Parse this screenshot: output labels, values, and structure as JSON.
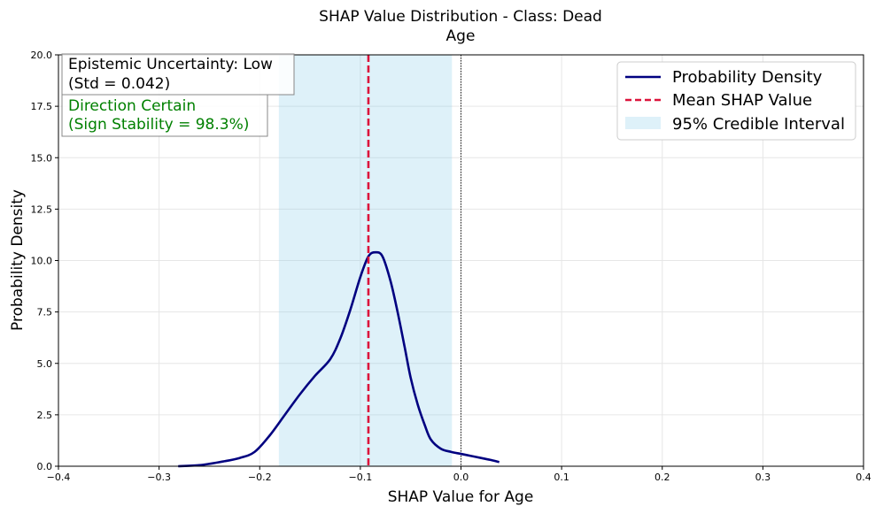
{
  "chart_data": {
    "type": "line",
    "title": "SHAP Value Distribution - Class: Dead",
    "subtitle": "Age",
    "xlabel": "SHAP Value for Age",
    "ylabel": "Probability Density",
    "xlim": [
      -0.4,
      0.4
    ],
    "ylim": [
      0,
      20
    ],
    "x_ticks": [
      -0.4,
      -0.3,
      -0.2,
      -0.1,
      0.0,
      0.1,
      0.2,
      0.3,
      0.4
    ],
    "x_tick_labels": [
      "−0.4",
      "−0.3",
      "−0.2",
      "−0.1",
      "0.0",
      "0.1",
      "0.2",
      "0.3",
      "0.4"
    ],
    "y_ticks": [
      0,
      2.5,
      5,
      7.5,
      10,
      12.5,
      15,
      17.5,
      20
    ],
    "y_tick_labels": [
      "0.0",
      "2.5",
      "5.0",
      "7.5",
      "10.0",
      "12.5",
      "15.0",
      "17.5",
      "20.0"
    ],
    "grid": true,
    "series": [
      {
        "name": "Probability Density",
        "color": "#000080",
        "x": [
          -0.281,
          -0.26,
          -0.24,
          -0.22,
          -0.205,
          -0.19,
          -0.175,
          -0.16,
          -0.145,
          -0.13,
          -0.12,
          -0.11,
          -0.1,
          -0.092,
          -0.085,
          -0.078,
          -0.07,
          -0.063,
          -0.056,
          -0.05,
          -0.043,
          -0.036,
          -0.03,
          -0.02,
          -0.01,
          0.0,
          0.01,
          0.02,
          0.03,
          0.038
        ],
        "y": [
          0.0,
          0.05,
          0.2,
          0.4,
          0.7,
          1.5,
          2.5,
          3.5,
          4.4,
          5.2,
          6.2,
          7.6,
          9.2,
          10.2,
          10.4,
          10.2,
          9.0,
          7.5,
          5.8,
          4.3,
          3.0,
          2.0,
          1.3,
          0.85,
          0.7,
          0.6,
          0.5,
          0.4,
          0.3,
          0.2
        ]
      }
    ],
    "mean_shap": -0.092,
    "mean_color": "#dc143c",
    "credible_interval": [
      -0.181,
      -0.009
    ],
    "interval_color": "#87ceeb",
    "zero_line": 0.0,
    "legend": {
      "position": "top-right",
      "entries": [
        "Probability Density",
        "Mean SHAP Value",
        "95% Credible Interval"
      ]
    },
    "annotations": {
      "uncertainty_line1": "Epistemic Uncertainty: Low",
      "uncertainty_line2": "(Std = 0.042)",
      "direction_line1": "Direction Certain",
      "direction_line2": "(Sign Stability = 98.3%)",
      "direction_color": "#008000"
    }
  }
}
